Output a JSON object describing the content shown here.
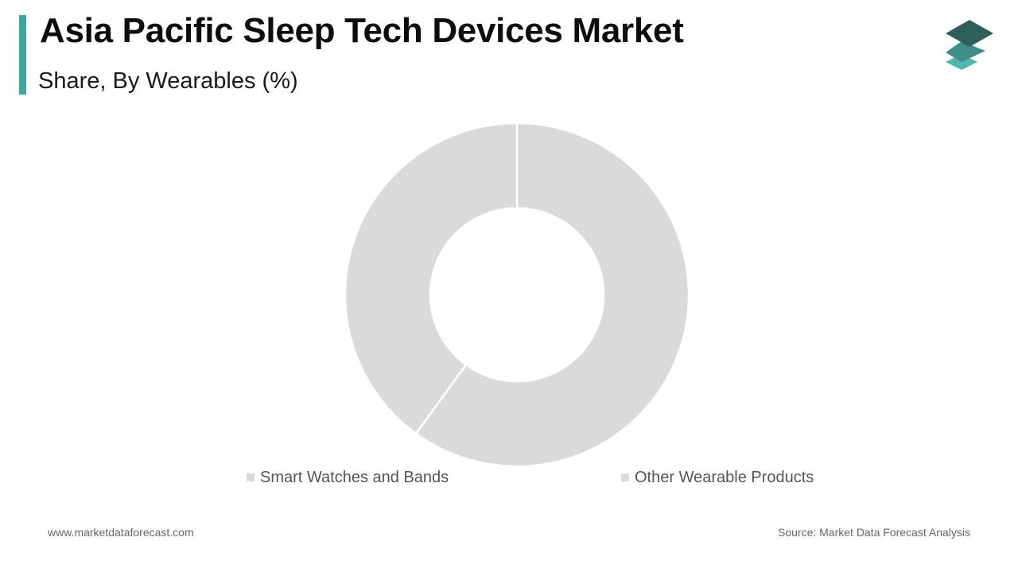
{
  "header": {
    "title": "Asia Pacific Sleep Tech Devices Market",
    "subtitle": "Share, By Wearables (%)"
  },
  "colors": {
    "accent": "#3aa8a2",
    "slice": "#dadada",
    "slice_border": "#ffffff",
    "logo_dark": "#2f5f5a",
    "logo_mid": "#3f8f86",
    "logo_light": "#4fb8ad"
  },
  "chart_data": {
    "type": "pie",
    "variant": "donut",
    "categories": [
      "Smart Watches and Bands",
      "Other Wearable Products"
    ],
    "values": [
      60,
      40
    ],
    "unit": "%",
    "legend": {
      "placement": "bottom",
      "entries": [
        "Smart Watches and Bands",
        "Other Wearable Products"
      ]
    }
  },
  "footer": {
    "website": "www.marketdataforecast.com",
    "source": "Source: Market Data Forecast Analysis"
  },
  "logo": {
    "icon": "stacked-layers-icon"
  }
}
